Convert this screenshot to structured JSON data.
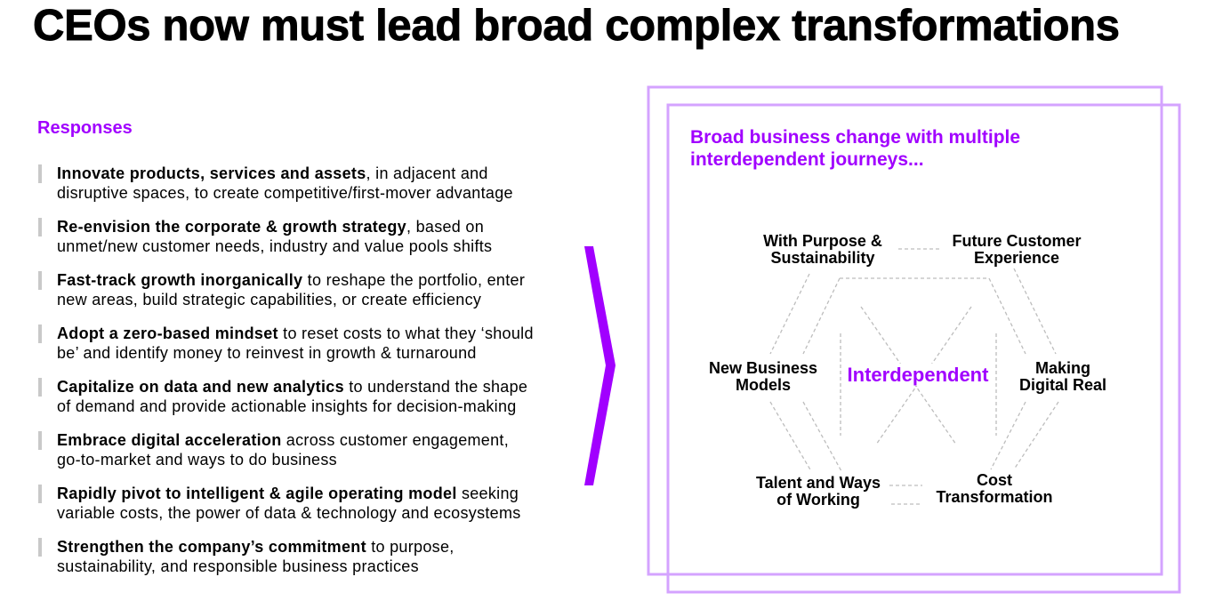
{
  "slide": {
    "title": "CEOs now must lead broad complex transformations"
  },
  "responses": {
    "heading": "Responses",
    "items": [
      {
        "bold": "Innovate products, services and assets",
        "rest": ", in adjacent and",
        "line2": "disruptive spaces, to create competitive/first-mover advantage"
      },
      {
        "bold": "Re-envision the corporate & growth strategy",
        "rest": ", based on",
        "line2": "unmet/new customer needs, industry and value pools shifts"
      },
      {
        "bold": "Fast-track growth inorganically",
        "rest": " to reshape the portfolio, enter",
        "line2": "new areas, build strategic capabilities, or create efficiency"
      },
      {
        "bold": "Adopt a zero-based mindset",
        "rest": " to reset costs to what they ‘should",
        "line2": "be’ and identify money to reinvest in growth & turnaround"
      },
      {
        "bold": "Capitalize on data and new analytics",
        "rest": " to understand the shape",
        "line2": "of demand and provide actionable insights for decision-making"
      },
      {
        "bold": "Embrace digital acceleration",
        "rest": " across customer engagement,",
        "line2": "go-to-market and ways to do business"
      },
      {
        "bold": "Rapidly pivot to intelligent & agile operating model",
        "rest": " seeking",
        "line2": "variable costs, the power of data & technology and ecosystems"
      },
      {
        "bold": "Strengthen the company’s commitment",
        "rest": " to purpose,",
        "line2": "sustainability, and responsible business practices"
      }
    ]
  },
  "diagram": {
    "heading": [
      "Broad business change with multiple",
      "interdependent journeys..."
    ],
    "center_label": "Interdependent",
    "nodes": {
      "purpose": [
        "With Purpose &",
        "Sustainability"
      ],
      "customer": [
        "Future Customer",
        "Experience"
      ],
      "new_business": [
        "New Business",
        "Models"
      ],
      "digital": [
        "Making",
        "Digital Real"
      ],
      "talent": [
        "Talent and Ways",
        "of Working"
      ],
      "cost": [
        "Cost",
        "Transformation"
      ]
    }
  },
  "colors": {
    "accent": "#A100FF",
    "frame": "#D4A3FF",
    "marker": "#C9C9C9",
    "connector": "#BDBDBD",
    "ink": "#000000"
  }
}
